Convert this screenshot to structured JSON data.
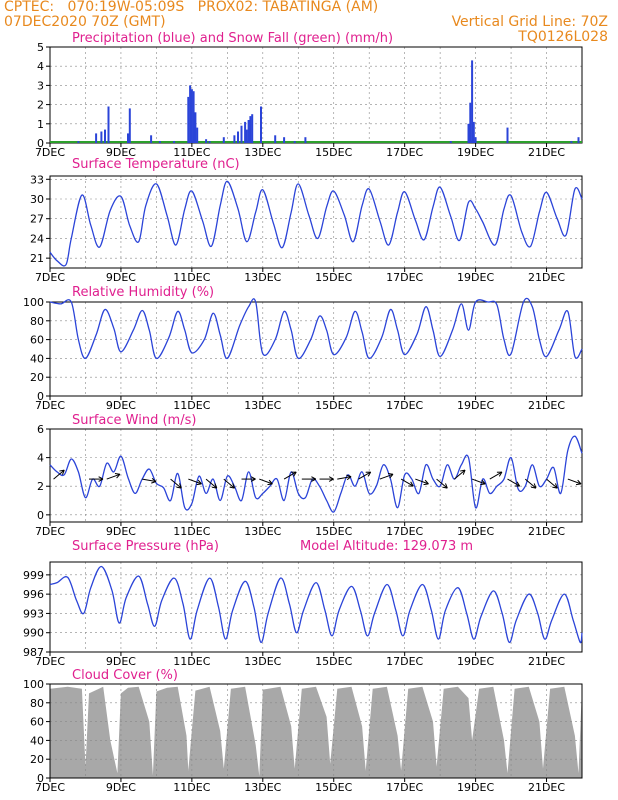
{
  "header": {
    "line1_left": "CPTEC:   070:19W-05:09S   PROX02: TABATINGA (AM)",
    "line2_left": "07DEC2020 70Z (GMT)",
    "line2_right": "Vertical Grid Line: 70Z",
    "line3_right": "TQ0126L028"
  },
  "colors": {
    "header": "#e8891e",
    "title": "#e0208f",
    "line": "#2b44d8",
    "snow": "#2ca02c",
    "cloud": "#a8a8a8",
    "grid": "#888888"
  },
  "chart_data": [
    {
      "type": "bar",
      "title": "Precipitation (blue) and Snow Fall (green) (mm/h)",
      "ylim": [
        0,
        5
      ],
      "yticks": [
        "0",
        "1",
        "2",
        "3",
        "4",
        "5"
      ],
      "xticks": [
        "7DEC",
        "9DEC",
        "11DEC",
        "13DEC",
        "15DEC",
        "17DEC",
        "19DEC",
        "21DEC"
      ],
      "x_days_range": [
        7,
        22
      ],
      "series": [
        {
          "name": "Precipitation",
          "color": "#2b44d8",
          "x": [
            7.8,
            8.3,
            8.45,
            8.55,
            8.65,
            9.2,
            9.25,
            9.85,
            10.1,
            10.5,
            10.9,
            10.95,
            11.0,
            11.05,
            11.1,
            11.15,
            11.4,
            11.5,
            11.9,
            12.2,
            12.3,
            12.4,
            12.5,
            12.55,
            12.6,
            12.65,
            12.7,
            12.95,
            13.35,
            13.6,
            13.9,
            14.2,
            18.3,
            18.8,
            18.85,
            18.9,
            18.95,
            19.0,
            19.9,
            21.7,
            21.9
          ],
          "values": [
            0.1,
            0.5,
            0.6,
            0.7,
            1.9,
            0.5,
            1.8,
            0.4,
            0.1,
            0.1,
            2.4,
            3.0,
            2.8,
            2.7,
            1.6,
            0.8,
            0.2,
            0.1,
            0.3,
            0.4,
            0.6,
            0.9,
            1.1,
            0.7,
            1.2,
            1.4,
            1.5,
            1.9,
            0.4,
            0.3,
            0.1,
            0.3,
            0.1,
            1.0,
            2.1,
            4.3,
            1.1,
            0.3,
            0.8,
            0.1,
            0.3
          ]
        }
      ]
    },
    {
      "type": "line",
      "title": "Surface Temperature (nC)",
      "ylim": [
        19.5,
        33.5
      ],
      "yticks": [
        "21",
        "24",
        "27",
        "30",
        "33"
      ],
      "xticks": [
        "7DEC",
        "9DEC",
        "11DEC",
        "13DEC",
        "15DEC",
        "17DEC",
        "19DEC",
        "21DEC"
      ],
      "series": [
        {
          "name": "Temperature",
          "color": "#2b44d8",
          "x": [
            7.0,
            7.2,
            7.45,
            7.6,
            7.9,
            8.15,
            8.4,
            8.7,
            9.0,
            9.25,
            9.5,
            9.7,
            10.0,
            10.3,
            10.55,
            10.8,
            11.0,
            11.3,
            11.55,
            11.8,
            12.0,
            12.3,
            12.55,
            12.8,
            13.0,
            13.3,
            13.55,
            13.8,
            14.0,
            14.3,
            14.55,
            14.8,
            15.0,
            15.3,
            15.55,
            15.8,
            16.0,
            16.3,
            16.55,
            16.8,
            17.0,
            17.3,
            17.55,
            17.8,
            18.0,
            18.3,
            18.55,
            18.8,
            19.0,
            19.2,
            19.55,
            19.8,
            20.0,
            20.3,
            20.55,
            20.8,
            21.0,
            21.3,
            21.55,
            21.8,
            22.0
          ],
          "values": [
            21.9,
            20.6,
            20.0,
            24.0,
            30.6,
            26.0,
            22.7,
            28.3,
            30.4,
            25.9,
            23.5,
            29.0,
            32.3,
            27.5,
            23.0,
            28.5,
            31.2,
            26.7,
            22.8,
            29.0,
            32.7,
            28.5,
            23.5,
            28.0,
            31.4,
            26.3,
            22.6,
            28.0,
            32.3,
            27.5,
            24.0,
            28.8,
            31.2,
            27.5,
            23.5,
            29.0,
            31.5,
            26.7,
            23.0,
            28.0,
            31.1,
            26.8,
            23.8,
            28.8,
            31.8,
            27.3,
            23.7,
            29.5,
            28.5,
            26.5,
            23.0,
            28.5,
            30.5,
            25.0,
            22.8,
            28.0,
            31.0,
            27.0,
            24.5,
            31.5,
            30.0
          ]
        }
      ]
    },
    {
      "type": "line",
      "title": "Relative Humidity (%)",
      "ylim": [
        0,
        100
      ],
      "yticks": [
        "0",
        "20",
        "40",
        "60",
        "80",
        "100"
      ],
      "xticks": [
        "7DEC",
        "9DEC",
        "11DEC",
        "13DEC",
        "15DEC",
        "17DEC",
        "19DEC",
        "21DEC"
      ],
      "series": [
        {
          "name": "Humidity",
          "color": "#2b44d8",
          "x": [
            7.0,
            7.3,
            7.6,
            7.8,
            8.0,
            8.3,
            8.55,
            8.8,
            9.0,
            9.35,
            9.6,
            9.8,
            10.0,
            10.35,
            10.6,
            10.8,
            11.0,
            11.35,
            11.6,
            11.8,
            12.0,
            12.35,
            12.6,
            12.8,
            13.0,
            13.35,
            13.6,
            13.8,
            14.0,
            14.35,
            14.6,
            14.8,
            15.0,
            15.35,
            15.6,
            15.8,
            16.0,
            16.35,
            16.6,
            16.8,
            17.0,
            17.35,
            17.6,
            17.8,
            18.0,
            18.35,
            18.6,
            18.8,
            19.0,
            19.35,
            19.6,
            19.8,
            20.0,
            20.35,
            20.6,
            20.8,
            21.0,
            21.35,
            21.6,
            21.8,
            22.0
          ],
          "values": [
            100,
            98,
            100,
            60,
            40,
            65,
            92,
            72,
            47,
            70,
            91,
            70,
            40,
            62,
            90,
            70,
            46,
            60,
            88,
            65,
            40,
            75,
            95,
            100,
            45,
            60,
            90,
            70,
            40,
            60,
            85,
            70,
            44,
            62,
            90,
            68,
            40,
            62,
            92,
            70,
            44,
            66,
            95,
            70,
            42,
            70,
            98,
            70,
            100,
            100,
            97,
            60,
            45,
            100,
            95,
            60,
            42,
            70,
            90,
            42,
            50
          ]
        }
      ]
    },
    {
      "type": "line",
      "title": "Surface Wind (m/s)",
      "ylim": [
        -0.5,
        6
      ],
      "yticks": [
        "0",
        "2",
        "4",
        "6"
      ],
      "xticks": [
        "7DEC",
        "9DEC",
        "11DEC",
        "13DEC",
        "15DEC",
        "17DEC",
        "19DEC",
        "21DEC"
      ],
      "series": [
        {
          "name": "Wind speed",
          "color": "#2b44d8",
          "x": [
            7.0,
            7.2,
            7.4,
            7.6,
            7.8,
            8.0,
            8.2,
            8.4,
            8.6,
            8.8,
            9.0,
            9.2,
            9.4,
            9.6,
            9.8,
            10.0,
            10.2,
            10.4,
            10.6,
            10.8,
            11.0,
            11.2,
            11.4,
            11.6,
            11.8,
            12.0,
            12.2,
            12.4,
            12.6,
            12.8,
            13.0,
            13.2,
            13.4,
            13.6,
            13.8,
            14.0,
            14.2,
            14.4,
            14.6,
            14.8,
            15.0,
            15.2,
            15.4,
            15.6,
            15.8,
            16.0,
            16.2,
            16.4,
            16.6,
            16.8,
            17.0,
            17.2,
            17.4,
            17.6,
            17.8,
            18.0,
            18.2,
            18.4,
            18.6,
            18.8,
            19.0,
            19.2,
            19.4,
            19.6,
            19.8,
            20.0,
            20.2,
            20.4,
            20.6,
            20.8,
            21.0,
            21.2,
            21.4,
            21.6,
            21.8,
            22.0
          ],
          "values": [
            3.5,
            3.0,
            2.8,
            3.9,
            3.0,
            1.2,
            2.5,
            2.0,
            3.6,
            3.0,
            4.1,
            2.6,
            1.5,
            2.5,
            3.2,
            2.2,
            1.9,
            1.0,
            2.9,
            0.5,
            0.8,
            2.7,
            1.5,
            2.5,
            1.0,
            2.7,
            2.0,
            1.0,
            3.0,
            1.2,
            1.5,
            2.0,
            2.5,
            1.0,
            3.0,
            1.5,
            1.2,
            2.5,
            2.0,
            1.0,
            0.2,
            1.5,
            2.8,
            2.0,
            3.0,
            1.5,
            2.0,
            3.5,
            2.5,
            0.5,
            2.8,
            2.5,
            1.5,
            3.5,
            2.5,
            2.0,
            3.5,
            2.5,
            3.5,
            4.0,
            0.5,
            2.5,
            1.5,
            2.0,
            2.5,
            4.0,
            1.8,
            2.0,
            3.5,
            2.0,
            2.5,
            3.3,
            1.5,
            4.5,
            5.5,
            4.3
          ]
        }
      ]
    },
    {
      "type": "line",
      "title": "Surface Pressure (hPa)",
      "annotation": "Model Altitude: 129.073 m",
      "ylim": [
        987,
        1001
      ],
      "yticks": [
        "987",
        "990",
        "993",
        "996",
        "999"
      ],
      "xticks": [
        "7DEC",
        "9DEC",
        "11DEC",
        "13DEC",
        "15DEC",
        "17DEC",
        "19DEC",
        "21DEC"
      ],
      "series": [
        {
          "name": "Pressure",
          "color": "#2b44d8",
          "x": [
            7.0,
            7.2,
            7.5,
            7.75,
            7.95,
            8.15,
            8.45,
            8.75,
            8.95,
            9.15,
            9.5,
            9.75,
            9.95,
            10.15,
            10.5,
            10.75,
            10.95,
            11.15,
            11.5,
            11.75,
            11.95,
            12.15,
            12.5,
            12.75,
            12.95,
            13.15,
            13.5,
            13.75,
            13.95,
            14.15,
            14.5,
            14.75,
            14.95,
            15.15,
            15.5,
            15.75,
            15.95,
            16.15,
            16.5,
            16.75,
            16.95,
            17.15,
            17.5,
            17.75,
            17.95,
            18.15,
            18.5,
            18.75,
            18.95,
            19.15,
            19.5,
            19.75,
            19.95,
            20.15,
            20.5,
            20.75,
            20.95,
            21.15,
            21.5,
            21.75,
            21.95,
            22.0
          ],
          "values": [
            997.5,
            997.8,
            998.6,
            995.0,
            993.0,
            997.0,
            1000.3,
            996.5,
            991.5,
            995.5,
            998.8,
            994.5,
            991.0,
            995.0,
            998.5,
            994.5,
            989.0,
            993.5,
            998.5,
            994.0,
            989.0,
            993.5,
            998.0,
            994.0,
            988.5,
            993.0,
            998.5,
            994.5,
            990.0,
            993.5,
            997.8,
            993.5,
            989.5,
            993.5,
            997.2,
            993.5,
            989.5,
            993.0,
            997.5,
            993.5,
            989.5,
            993.5,
            997.5,
            993.5,
            989.0,
            993.5,
            997.0,
            993.0,
            989.0,
            992.5,
            996.5,
            993.0,
            988.5,
            992.0,
            996.0,
            993.0,
            989.0,
            992.0,
            996.0,
            992.0,
            988.5,
            990.0
          ]
        }
      ]
    },
    {
      "type": "area",
      "title": "Cloud Cover (%)",
      "ylim": [
        0,
        100
      ],
      "yticks": [
        "0",
        "20",
        "40",
        "60",
        "80",
        "100"
      ],
      "xticks": [
        "7DEC",
        "9DEC",
        "11DEC",
        "13DEC",
        "15DEC",
        "17DEC",
        "19DEC",
        "21DEC"
      ],
      "series": [
        {
          "name": "Cloud cover",
          "color": "#a8a8a8",
          "x": [
            7.0,
            7.5,
            7.9,
            8.0,
            8.1,
            8.5,
            8.7,
            8.9,
            9.0,
            9.2,
            9.5,
            9.8,
            9.9,
            10.0,
            10.3,
            10.6,
            10.85,
            10.9,
            11.1,
            11.5,
            11.8,
            11.9,
            12.1,
            12.5,
            12.8,
            12.9,
            13.0,
            13.5,
            13.8,
            13.9,
            14.1,
            14.5,
            14.8,
            14.9,
            15.1,
            15.5,
            15.8,
            15.9,
            16.1,
            16.5,
            16.8,
            16.9,
            17.1,
            17.5,
            17.8,
            17.9,
            18.1,
            18.5,
            18.8,
            18.9,
            19.1,
            19.5,
            19.8,
            19.9,
            20.1,
            20.5,
            20.8,
            20.9,
            21.1,
            21.5,
            21.8,
            21.9,
            22.0
          ],
          "values": [
            95,
            97,
            95,
            12,
            90,
            97,
            40,
            5,
            90,
            96,
            97,
            60,
            3,
            92,
            96,
            97,
            45,
            8,
            93,
            97,
            50,
            10,
            95,
            97,
            35,
            2,
            94,
            97,
            55,
            10,
            95,
            97,
            65,
            15,
            95,
            97,
            55,
            8,
            95,
            97,
            45,
            8,
            95,
            97,
            60,
            12,
            95,
            97,
            85,
            40,
            95,
            97,
            40,
            5,
            95,
            97,
            60,
            10,
            95,
            97,
            45,
            5,
            97
          ]
        }
      ]
    }
  ]
}
